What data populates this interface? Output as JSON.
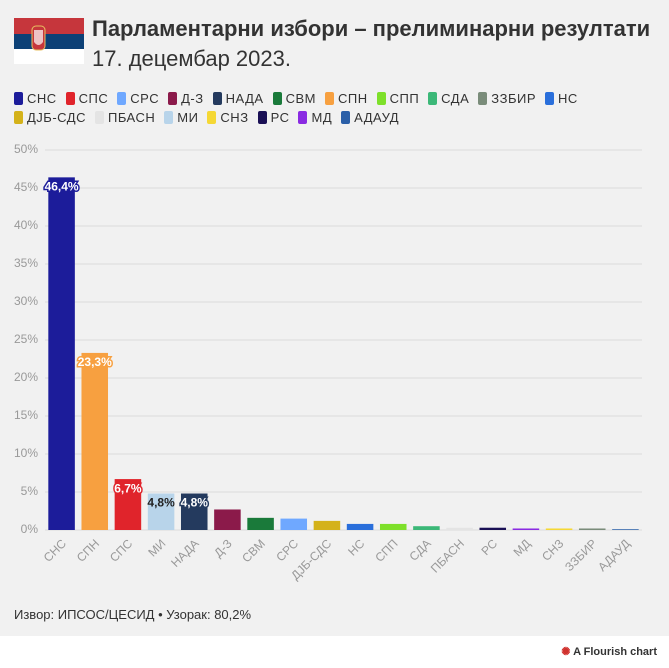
{
  "chart_data": {
    "type": "bar",
    "title": "Парламентарни избори – прелиминарни резултати",
    "subtitle": "17. децембар 2023.",
    "legend": [
      {
        "name": "СНС",
        "color": "#1c1c9a"
      },
      {
        "name": "СПС",
        "color": "#e0242b"
      },
      {
        "name": "СРС",
        "color": "#6fa8ff"
      },
      {
        "name": "Д-З",
        "color": "#8b1a4a"
      },
      {
        "name": "НАДА",
        "color": "#243a5e"
      },
      {
        "name": "СВМ",
        "color": "#1a7a3a"
      },
      {
        "name": "СПН",
        "color": "#f7a040"
      },
      {
        "name": "СПП",
        "color": "#7ee02a"
      },
      {
        "name": "СДА",
        "color": "#3cb878"
      },
      {
        "name": "ЗЗБИР",
        "color": "#7a8c7a"
      },
      {
        "name": "НС",
        "color": "#2a6fdb"
      },
      {
        "name": "ДЈБ-СДС",
        "color": "#d4b21a"
      },
      {
        "name": "ПБАСН",
        "color": "#e4e4e4"
      },
      {
        "name": "МИ",
        "color": "#b8d4ea"
      },
      {
        "name": "СНЗ",
        "color": "#f5d835"
      },
      {
        "name": "РС",
        "color": "#1a1055"
      },
      {
        "name": "МД",
        "color": "#8a2be2"
      },
      {
        "name": "АДАУД",
        "color": "#2a5fa8"
      }
    ],
    "categories": [
      "СНС",
      "СПН",
      "СПС",
      "МИ",
      "НАДА",
      "Д-З",
      "СВМ",
      "СРС",
      "ДЈБ-СДС",
      "НС",
      "СПП",
      "СДА",
      "ПБАСН",
      "РС",
      "МД",
      "СНЗ",
      "ЗЗБИР",
      "АДАУД"
    ],
    "values": [
      46.4,
      23.3,
      6.7,
      4.8,
      4.8,
      2.7,
      1.6,
      1.5,
      1.2,
      0.8,
      0.8,
      0.5,
      0.3,
      0.3,
      0.2,
      0.2,
      0.2,
      0.1
    ],
    "value_labels": [
      "46,4%",
      "23,3%",
      "6,7%",
      "4,8%",
      "4,8%",
      null,
      null,
      null,
      null,
      null,
      null,
      null,
      null,
      null,
      null,
      null,
      null,
      null
    ],
    "colors": [
      "#1c1c9a",
      "#f7a040",
      "#e0242b",
      "#b8d4ea",
      "#243a5e",
      "#8b1a4a",
      "#1a7a3a",
      "#6fa8ff",
      "#d4b21a",
      "#2a6fdb",
      "#7ee02a",
      "#3cb878",
      "#e4e4e4",
      "#1a1055",
      "#8a2be2",
      "#f5d835",
      "#7a8c7a",
      "#2a5fa8"
    ],
    "ylim": [
      0,
      50
    ],
    "yticks": [
      {
        "value": 0,
        "label": "0%"
      },
      {
        "value": 5,
        "label": "5%"
      },
      {
        "value": 10,
        "label": "10%"
      },
      {
        "value": 15,
        "label": "15%"
      },
      {
        "value": 20,
        "label": "20%"
      },
      {
        "value": 25,
        "label": "25%"
      },
      {
        "value": 30,
        "label": "30%"
      },
      {
        "value": 35,
        "label": "35%"
      },
      {
        "value": 40,
        "label": "40%"
      },
      {
        "value": 45,
        "label": "45%"
      },
      {
        "value": 50,
        "label": "50%"
      }
    ],
    "grid": true,
    "source": "Извор: ИПСОС/ЦЕСИД • Узорак: 80,2%",
    "brand": "A Flourish chart"
  }
}
